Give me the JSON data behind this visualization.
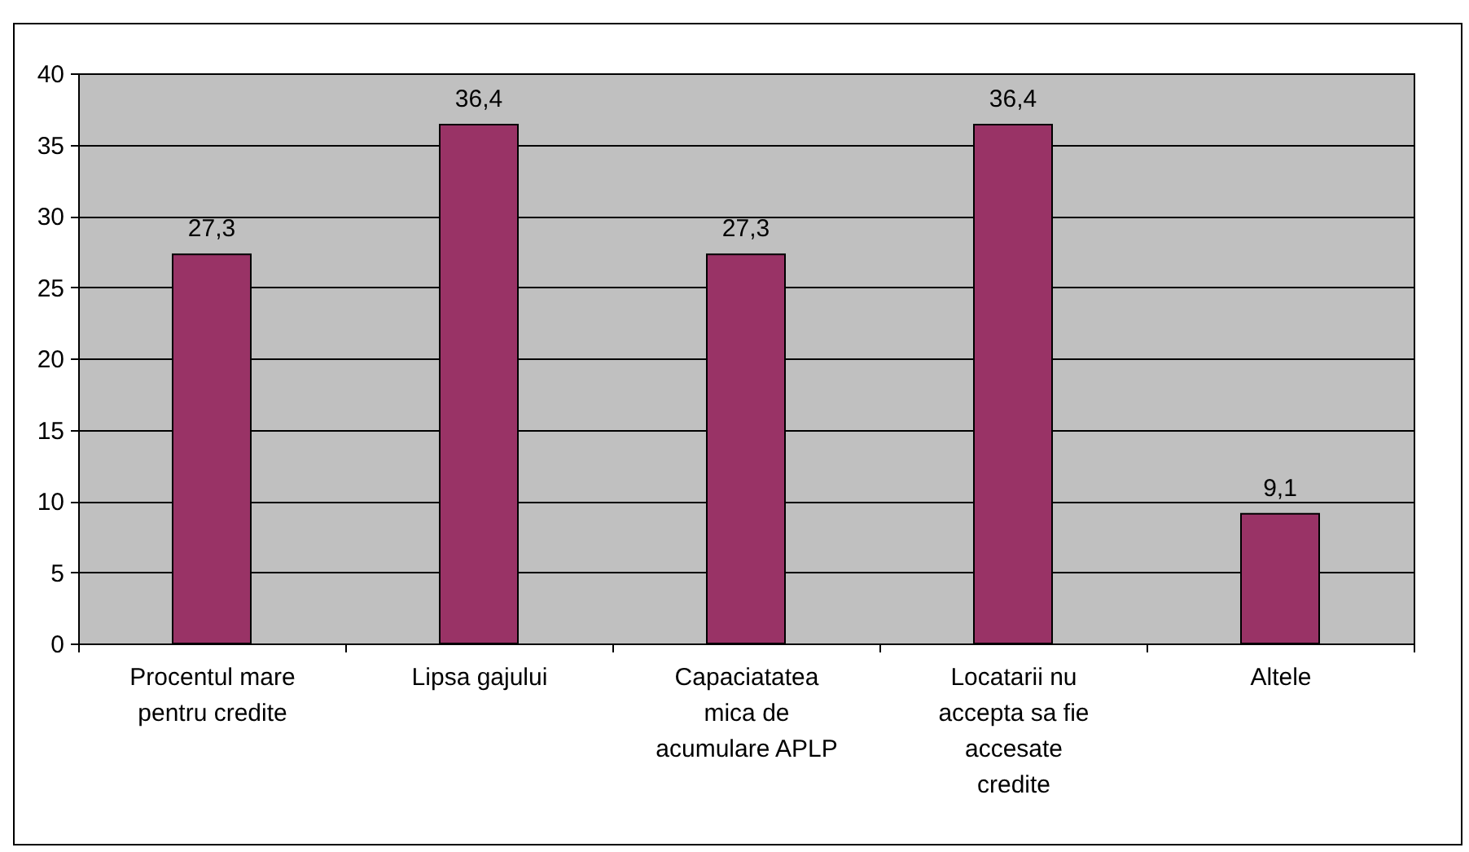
{
  "chart_data": {
    "type": "bar",
    "categories": [
      "Procentul mare pentru credite",
      "Lipsa gajului",
      "Capaciatatea mica de acumulare APLP",
      "Locatarii nu accepta sa fie accesate credite",
      "Altele"
    ],
    "values": [
      27.3,
      36.4,
      27.3,
      36.4,
      9.1
    ],
    "color": "#993366",
    "ylim": [
      0,
      40
    ],
    "yticks": [
      0,
      5,
      10,
      15,
      20,
      25,
      30,
      35,
      40
    ],
    "value_labels": [
      "27,3",
      "36,4",
      "27,3",
      "36,4",
      "9,1"
    ],
    "grid": "y"
  }
}
